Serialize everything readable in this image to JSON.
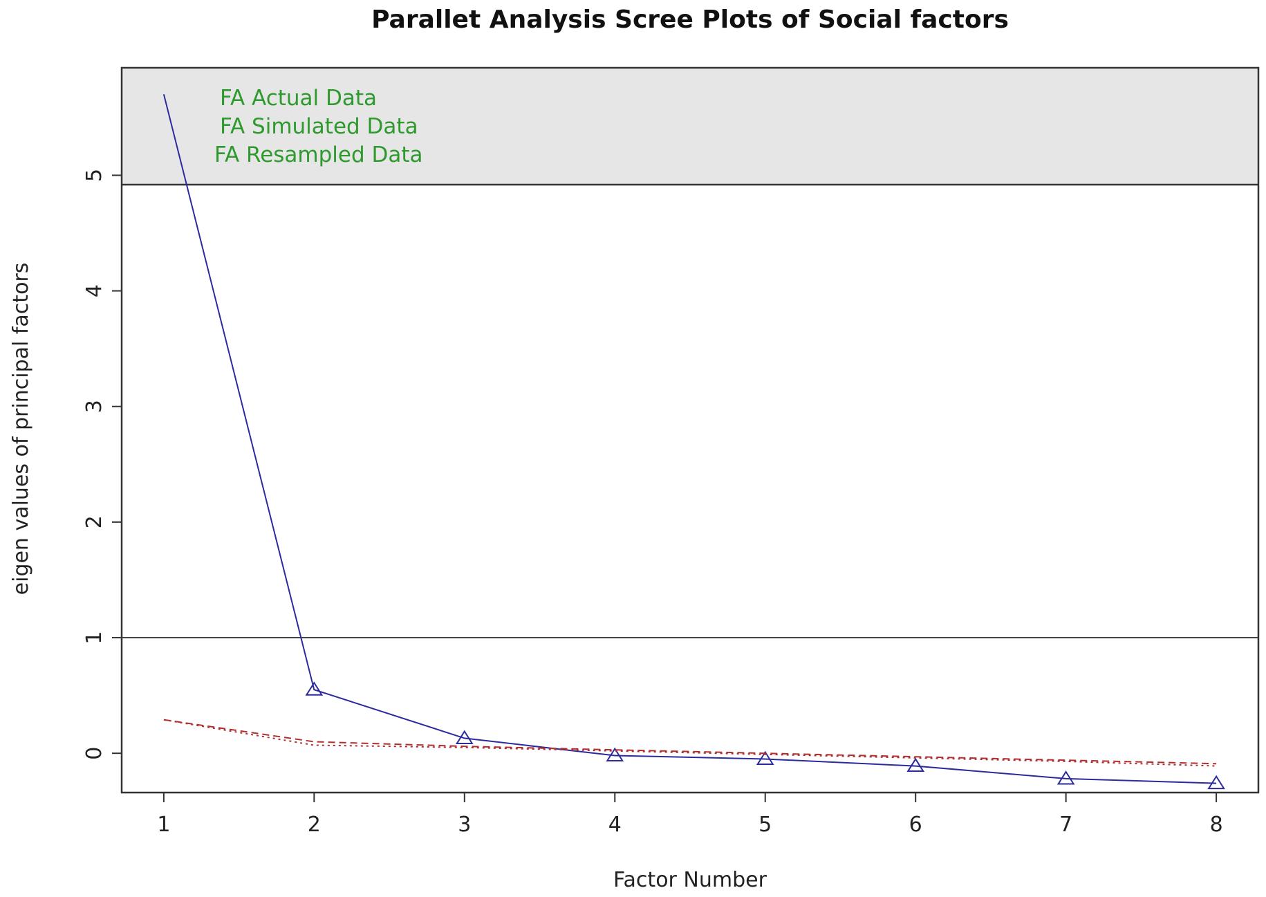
{
  "chart_data": {
    "type": "line",
    "title": "Parallet Analysis Scree Plots of Social factors",
    "xlabel": "Factor Number",
    "ylabel": "eigen values of principal factors",
    "x": [
      1,
      2,
      3,
      4,
      5,
      6,
      7,
      8
    ],
    "xlim": [
      0.72,
      8.28
    ],
    "ylim": [
      -0.34,
      5.93
    ],
    "xticks": [
      "1",
      "2",
      "3",
      "4",
      "5",
      "6",
      "7",
      "8"
    ],
    "yticks": [
      "0",
      "1",
      "2",
      "3",
      "4",
      "5"
    ],
    "reference_line": 1,
    "legend": {
      "position": "top-left",
      "background": "#e6e6e6",
      "text_color": "#2e9a2e",
      "entries": [
        "FA  Actual Data",
        "FA  Simulated Data",
        "FA  Resampled Data"
      ]
    },
    "series": [
      {
        "values": [
          5.7,
          0.55,
          0.13,
          -0.02,
          -0.05,
          -0.11,
          -0.22,
          -0.26
        ],
        "color": "#2b2b9e",
        "style": "solid",
        "marker": "triangle"
      },
      {
        "values": [
          0.29,
          0.1,
          0.06,
          0.03,
          0.0,
          -0.03,
          -0.06,
          -0.09
        ],
        "color": "#b03030",
        "style": "dashed",
        "marker": "none"
      },
      {
        "values": [
          0.29,
          0.07,
          0.05,
          0.02,
          -0.01,
          -0.04,
          -0.07,
          -0.11
        ],
        "color": "#b03030",
        "style": "dotted",
        "marker": "none"
      }
    ]
  }
}
